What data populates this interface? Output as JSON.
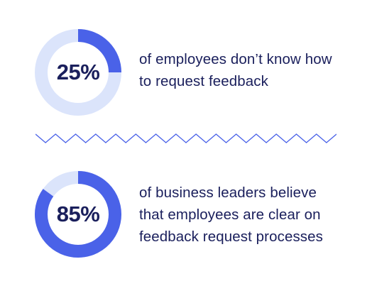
{
  "colors": {
    "accent": "#4a62e8",
    "track": "#dbe4fb",
    "text": "#1a1f5c",
    "divider": "#4a62e8"
  },
  "chart_data": [
    {
      "type": "pie",
      "values": [
        25,
        75
      ],
      "labels": [
        "25%",
        ""
      ],
      "text": [
        "of employees don’t know how",
        "to request feedback"
      ]
    },
    {
      "type": "pie",
      "values": [
        85,
        15
      ],
      "labels": [
        "85%",
        ""
      ],
      "text": [
        "of business leaders believe",
        "that employees are clear on",
        "feedback request processes"
      ]
    }
  ]
}
